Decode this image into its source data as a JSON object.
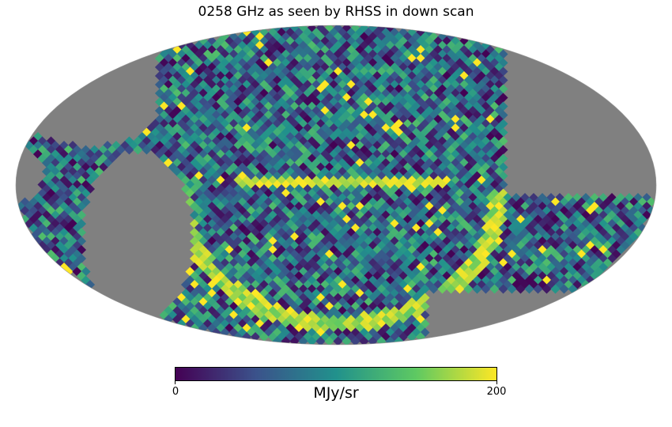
{
  "title": "0258 GHz as seen by RHSS in down scan",
  "colorbar": {
    "min_label": "0",
    "max_label": "200",
    "unit": "MJy/sr",
    "min": 0,
    "max": 200,
    "colormap": "viridis",
    "stops": [
      "#440154",
      "#3b528b",
      "#21918c",
      "#5ec962",
      "#fde725"
    ],
    "bad_color": "#808080"
  },
  "map": {
    "projection": "mollweide",
    "background": "white",
    "grid": false
  }
}
